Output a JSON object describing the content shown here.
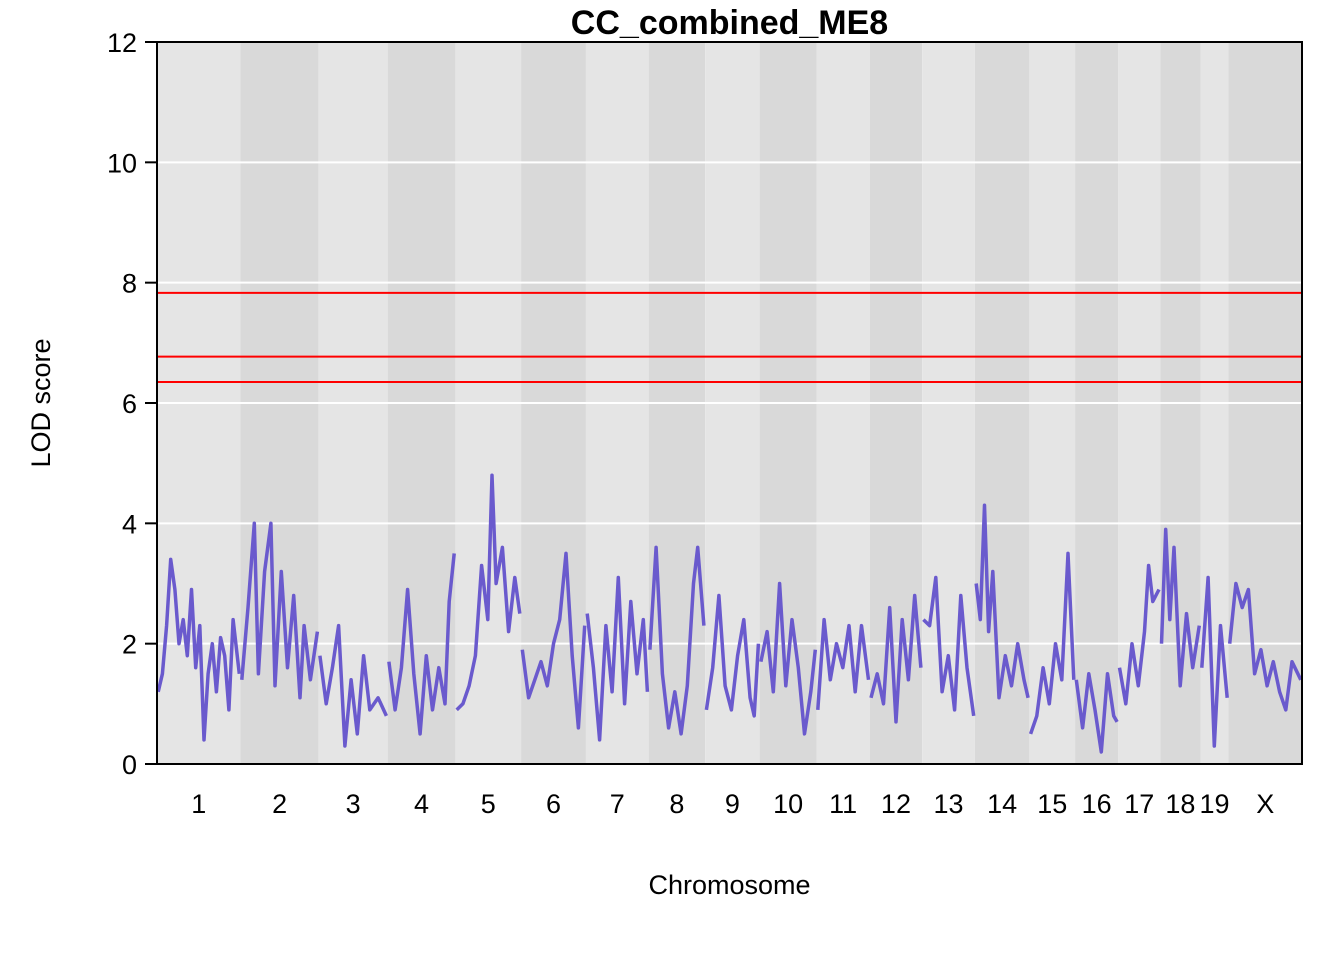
{
  "chart_data": {
    "type": "line",
    "title": "CC_combined_ME8",
    "xlabel": "Chromosome",
    "ylabel": "LOD score",
    "ylim": [
      0,
      12
    ],
    "yticks": [
      0,
      2,
      4,
      6,
      8,
      10,
      12
    ],
    "grid": true,
    "line_color": "#6A5ACD",
    "threshold_color": "#FF0000",
    "band_colors": [
      "#E5E5E5",
      "#D9D9D9"
    ],
    "thresholds": [
      7.83,
      6.77,
      6.35
    ],
    "chromosomes": [
      {
        "name": "1",
        "length": 195
      },
      {
        "name": "2",
        "length": 182
      },
      {
        "name": "3",
        "length": 160
      },
      {
        "name": "4",
        "length": 157
      },
      {
        "name": "5",
        "length": 152
      },
      {
        "name": "6",
        "length": 150
      },
      {
        "name": "7",
        "length": 145
      },
      {
        "name": "8",
        "length": 130
      },
      {
        "name": "9",
        "length": 125
      },
      {
        "name": "10",
        "length": 131
      },
      {
        "name": "11",
        "length": 122
      },
      {
        "name": "12",
        "length": 120
      },
      {
        "name": "13",
        "length": 121
      },
      {
        "name": "14",
        "length": 125
      },
      {
        "name": "15",
        "length": 104
      },
      {
        "name": "16",
        "length": 98
      },
      {
        "name": "17",
        "length": 95
      },
      {
        "name": "18",
        "length": 91
      },
      {
        "name": "19",
        "length": 61
      },
      {
        "name": "X",
        "length": 171
      }
    ],
    "series": [
      {
        "profiles": [
          {
            "chr": "1",
            "points": [
              [
                0,
                1.2
              ],
              [
                10,
                1.5
              ],
              [
                20,
                2.3
              ],
              [
                30,
                3.4
              ],
              [
                40,
                2.9
              ],
              [
                50,
                2.0
              ],
              [
                60,
                2.4
              ],
              [
                70,
                1.8
              ],
              [
                80,
                2.9
              ],
              [
                90,
                1.6
              ],
              [
                100,
                2.3
              ],
              [
                110,
                0.4
              ],
              [
                120,
                1.5
              ],
              [
                130,
                2.0
              ],
              [
                140,
                1.2
              ],
              [
                150,
                2.1
              ],
              [
                160,
                1.8
              ],
              [
                170,
                0.9
              ],
              [
                180,
                2.4
              ],
              [
                195,
                1.5
              ]
            ]
          },
          {
            "chr": "2",
            "points": [
              [
                0,
                1.4
              ],
              [
                15,
                2.6
              ],
              [
                30,
                4.0
              ],
              [
                40,
                1.5
              ],
              [
                55,
                3.2
              ],
              [
                70,
                4.0
              ],
              [
                80,
                1.3
              ],
              [
                95,
                3.2
              ],
              [
                110,
                1.6
              ],
              [
                125,
                2.8
              ],
              [
                140,
                1.1
              ],
              [
                150,
                2.3
              ],
              [
                165,
                1.4
              ],
              [
                182,
                2.2
              ]
            ]
          },
          {
            "chr": "3",
            "points": [
              [
                0,
                1.8
              ],
              [
                15,
                1.0
              ],
              [
                30,
                1.6
              ],
              [
                45,
                2.3
              ],
              [
                60,
                0.3
              ],
              [
                75,
                1.4
              ],
              [
                90,
                0.5
              ],
              [
                105,
                1.8
              ],
              [
                120,
                0.9
              ],
              [
                140,
                1.1
              ],
              [
                160,
                0.8
              ]
            ]
          },
          {
            "chr": "4",
            "points": [
              [
                0,
                1.7
              ],
              [
                15,
                0.9
              ],
              [
                30,
                1.6
              ],
              [
                45,
                2.9
              ],
              [
                60,
                1.5
              ],
              [
                75,
                0.5
              ],
              [
                90,
                1.8
              ],
              [
                105,
                0.9
              ],
              [
                120,
                1.6
              ],
              [
                135,
                1.0
              ],
              [
                145,
                2.7
              ],
              [
                157,
                3.5
              ]
            ]
          },
          {
            "chr": "5",
            "points": [
              [
                0,
                0.9
              ],
              [
                15,
                1.0
              ],
              [
                30,
                1.3
              ],
              [
                45,
                1.8
              ],
              [
                60,
                3.3
              ],
              [
                75,
                2.4
              ],
              [
                85,
                4.8
              ],
              [
                95,
                3.0
              ],
              [
                110,
                3.6
              ],
              [
                125,
                2.2
              ],
              [
                140,
                3.1
              ],
              [
                152,
                2.5
              ]
            ]
          },
          {
            "chr": "6",
            "points": [
              [
                0,
                1.9
              ],
              [
                15,
                1.1
              ],
              [
                30,
                1.4
              ],
              [
                45,
                1.7
              ],
              [
                60,
                1.3
              ],
              [
                75,
                2.0
              ],
              [
                90,
                2.4
              ],
              [
                105,
                3.5
              ],
              [
                120,
                1.8
              ],
              [
                135,
                0.6
              ],
              [
                150,
                2.3
              ]
            ]
          },
          {
            "chr": "7",
            "points": [
              [
                0,
                2.5
              ],
              [
                15,
                1.6
              ],
              [
                30,
                0.4
              ],
              [
                45,
                2.3
              ],
              [
                60,
                1.2
              ],
              [
                75,
                3.1
              ],
              [
                90,
                1.0
              ],
              [
                105,
                2.7
              ],
              [
                120,
                1.5
              ],
              [
                135,
                2.4
              ],
              [
                145,
                1.2
              ]
            ]
          },
          {
            "chr": "8",
            "points": [
              [
                0,
                1.9
              ],
              [
                15,
                3.6
              ],
              [
                30,
                1.5
              ],
              [
                45,
                0.6
              ],
              [
                60,
                1.2
              ],
              [
                75,
                0.5
              ],
              [
                90,
                1.3
              ],
              [
                105,
                3.0
              ],
              [
                115,
                3.6
              ],
              [
                130,
                2.3
              ]
            ]
          },
          {
            "chr": "9",
            "points": [
              [
                0,
                0.9
              ],
              [
                15,
                1.6
              ],
              [
                30,
                2.8
              ],
              [
                45,
                1.3
              ],
              [
                60,
                0.9
              ],
              [
                75,
                1.8
              ],
              [
                90,
                2.4
              ],
              [
                105,
                1.1
              ],
              [
                115,
                0.8
              ],
              [
                125,
                2.0
              ]
            ]
          },
          {
            "chr": "10",
            "points": [
              [
                0,
                1.7
              ],
              [
                15,
                2.2
              ],
              [
                30,
                1.2
              ],
              [
                45,
                3.0
              ],
              [
                60,
                1.3
              ],
              [
                75,
                2.4
              ],
              [
                90,
                1.6
              ],
              [
                105,
                0.5
              ],
              [
                120,
                1.2
              ],
              [
                131,
                1.9
              ]
            ]
          },
          {
            "chr": "11",
            "points": [
              [
                0,
                0.9
              ],
              [
                15,
                2.4
              ],
              [
                30,
                1.4
              ],
              [
                45,
                2.0
              ],
              [
                60,
                1.6
              ],
              [
                75,
                2.3
              ],
              [
                90,
                1.2
              ],
              [
                105,
                2.3
              ],
              [
                122,
                1.4
              ]
            ]
          },
          {
            "chr": "12",
            "points": [
              [
                0,
                1.1
              ],
              [
                15,
                1.5
              ],
              [
                30,
                1.0
              ],
              [
                45,
                2.6
              ],
              [
                60,
                0.7
              ],
              [
                75,
                2.4
              ],
              [
                90,
                1.4
              ],
              [
                105,
                2.8
              ],
              [
                120,
                1.6
              ]
            ]
          },
          {
            "chr": "13",
            "points": [
              [
                0,
                2.4
              ],
              [
                15,
                2.3
              ],
              [
                30,
                3.1
              ],
              [
                45,
                1.2
              ],
              [
                60,
                1.8
              ],
              [
                75,
                0.9
              ],
              [
                90,
                2.8
              ],
              [
                105,
                1.6
              ],
              [
                121,
                0.8
              ]
            ]
          },
          {
            "chr": "14",
            "points": [
              [
                0,
                3.0
              ],
              [
                10,
                2.4
              ],
              [
                20,
                4.3
              ],
              [
                30,
                2.2
              ],
              [
                40,
                3.2
              ],
              [
                55,
                1.1
              ],
              [
                70,
                1.8
              ],
              [
                85,
                1.3
              ],
              [
                100,
                2.0
              ],
              [
                115,
                1.4
              ],
              [
                125,
                1.1
              ]
            ]
          },
          {
            "chr": "15",
            "points": [
              [
                0,
                0.5
              ],
              [
                15,
                0.8
              ],
              [
                30,
                1.6
              ],
              [
                45,
                1.0
              ],
              [
                60,
                2.0
              ],
              [
                75,
                1.4
              ],
              [
                90,
                3.5
              ],
              [
                104,
                1.4
              ]
            ]
          },
          {
            "chr": "16",
            "points": [
              [
                0,
                1.4
              ],
              [
                15,
                0.6
              ],
              [
                30,
                1.5
              ],
              [
                45,
                0.9
              ],
              [
                60,
                0.2
              ],
              [
                75,
                1.5
              ],
              [
                90,
                0.8
              ],
              [
                98,
                0.7
              ]
            ]
          },
          {
            "chr": "17",
            "points": [
              [
                0,
                1.6
              ],
              [
                15,
                1.0
              ],
              [
                30,
                2.0
              ],
              [
                45,
                1.3
              ],
              [
                60,
                2.2
              ],
              [
                70,
                3.3
              ],
              [
                80,
                2.7
              ],
              [
                95,
                2.9
              ]
            ]
          },
          {
            "chr": "18",
            "points": [
              [
                0,
                2.0
              ],
              [
                10,
                3.9
              ],
              [
                20,
                2.4
              ],
              [
                30,
                3.6
              ],
              [
                45,
                1.3
              ],
              [
                60,
                2.5
              ],
              [
                75,
                1.6
              ],
              [
                91,
                2.3
              ]
            ]
          },
          {
            "chr": "19",
            "points": [
              [
                0,
                1.6
              ],
              [
                15,
                3.1
              ],
              [
                30,
                0.3
              ],
              [
                45,
                2.3
              ],
              [
                61,
                1.1
              ]
            ]
          },
          {
            "chr": "X",
            "points": [
              [
                0,
                2.0
              ],
              [
                15,
                3.0
              ],
              [
                30,
                2.6
              ],
              [
                45,
                2.9
              ],
              [
                60,
                1.5
              ],
              [
                75,
                1.9
              ],
              [
                90,
                1.3
              ],
              [
                105,
                1.7
              ],
              [
                120,
                1.2
              ],
              [
                135,
                0.9
              ],
              [
                150,
                1.7
              ],
              [
                171,
                1.4
              ]
            ]
          }
        ]
      }
    ]
  }
}
